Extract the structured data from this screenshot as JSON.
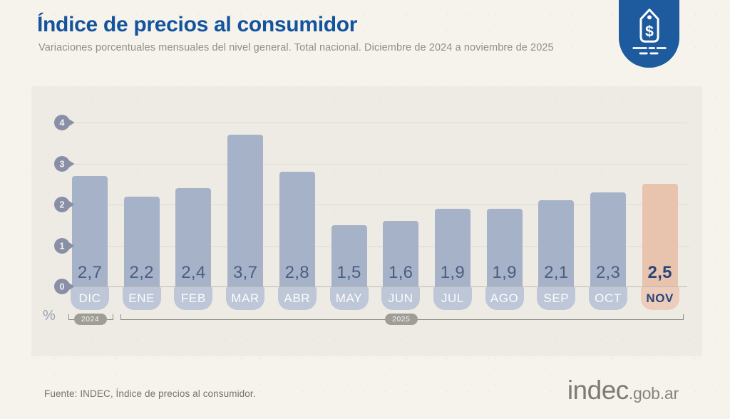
{
  "header": {
    "title": "Índice de precios al consumidor",
    "subtitle": "Variaciones porcentuales mensuales del nivel general. Total nacional. Diciembre de 2024 a noviembre de 2025"
  },
  "badge": {
    "icon": "price-tag-dollar-icon"
  },
  "chart_data": {
    "type": "bar",
    "title": "Índice de precios al consumidor",
    "subtitle": "Variaciones porcentuales mensuales del nivel general. Total nacional. Diciembre de 2024 a noviembre de 2025",
    "categories": [
      "DIC",
      "ENE",
      "FEB",
      "MAR",
      "ABR",
      "MAY",
      "JUN",
      "JUL",
      "AGO",
      "SEP",
      "OCT",
      "NOV"
    ],
    "values": [
      2.7,
      2.2,
      2.4,
      3.7,
      2.8,
      1.5,
      1.6,
      1.9,
      1.9,
      2.1,
      2.3,
      2.5
    ],
    "value_labels": [
      "2,7",
      "2,2",
      "2,4",
      "3,7",
      "2,8",
      "1,5",
      "1,6",
      "1,9",
      "1,9",
      "2,1",
      "2,3",
      "2,5"
    ],
    "highlight_index": 11,
    "highlight_category": "NOV",
    "y_ticks": [
      "0",
      "1",
      "2",
      "3",
      "4"
    ],
    "ylim": [
      0,
      4
    ],
    "unit_label": "%",
    "grid": true,
    "legend": false,
    "year_groups": [
      {
        "label": "2024",
        "start": 0,
        "end": 0
      },
      {
        "label": "2025",
        "start": 1,
        "end": 11
      }
    ]
  },
  "colors": {
    "title_blue": "#14549d",
    "badge_bg": "#1d5a9e",
    "bar": "#a6b2c8",
    "bar_pill": "#bdc7d8",
    "bar_highlight": "#e8c4ae",
    "pill_highlight": "#eccdbb",
    "value_text": "#4e5c80",
    "value_text_highlight": "#2b4578",
    "marker": "#8a8fa8",
    "year_pill": "#9e9e97",
    "panel_bg": "#eeebe5",
    "page_bg": "#f6f3ec"
  },
  "footer": {
    "source": "Fuente: INDEC, Índice de precios al consumidor.",
    "logo_main": "indec",
    "logo_suffix": ".gob.ar"
  }
}
